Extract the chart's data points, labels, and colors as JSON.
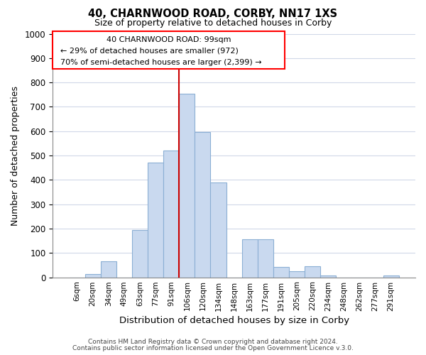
{
  "title": "40, CHARNWOOD ROAD, CORBY, NN17 1XS",
  "subtitle": "Size of property relative to detached houses in Corby",
  "xlabel": "Distribution of detached houses by size in Corby",
  "ylabel": "Number of detached properties",
  "bar_labels": [
    "6sqm",
    "20sqm",
    "34sqm",
    "49sqm",
    "63sqm",
    "77sqm",
    "91sqm",
    "106sqm",
    "120sqm",
    "134sqm",
    "148sqm",
    "163sqm",
    "177sqm",
    "191sqm",
    "205sqm",
    "220sqm",
    "234sqm",
    "248sqm",
    "262sqm",
    "277sqm",
    "291sqm"
  ],
  "bar_values": [
    0,
    12,
    65,
    0,
    195,
    470,
    520,
    755,
    595,
    390,
    0,
    155,
    155,
    42,
    25,
    45,
    8,
    0,
    0,
    0,
    8
  ],
  "bar_color": "#c9d9ef",
  "bar_edge_color": "#8bafd4",
  "vline_color": "#cc0000",
  "annotation_line1": "40 CHARNWOOD ROAD: 99sqm",
  "annotation_line2": "← 29% of detached houses are smaller (972)",
  "annotation_line3": "70% of semi-detached houses are larger (2,399) →",
  "ylim": [
    0,
    1000
  ],
  "yticks": [
    0,
    100,
    200,
    300,
    400,
    500,
    600,
    700,
    800,
    900,
    1000
  ],
  "footer_text1": "Contains HM Land Registry data © Crown copyright and database right 2024.",
  "footer_text2": "Contains public sector information licensed under the Open Government Licence v.3.0.",
  "background_color": "#ffffff",
  "grid_color": "#d0d8e8"
}
